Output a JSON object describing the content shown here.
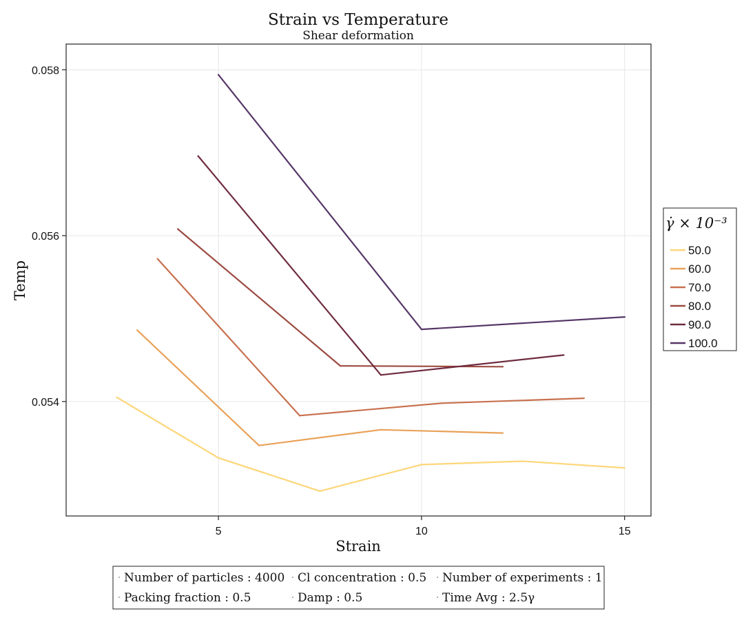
{
  "chart_data": {
    "type": "line",
    "title": "Strain vs Temperature",
    "subtitle": "Shear deformation",
    "xlabel": "Strain",
    "ylabel": "Temp",
    "xlim": [
      1.25,
      15.65
    ],
    "ylim": [
      0.05262,
      0.05831
    ],
    "xticks": [
      5,
      10,
      15
    ],
    "xtick_labels": [
      "5",
      "10",
      "15"
    ],
    "yticks": [
      0.054,
      0.056,
      0.058
    ],
    "ytick_labels": [
      "0.054",
      "0.056",
      "0.058"
    ],
    "grid": true,
    "legend": {
      "title": "γ̇ × 10⁻³",
      "placement": "right",
      "entries": [
        "50.0",
        "60.0",
        "70.0",
        "80.0",
        "90.0",
        "100.0"
      ]
    },
    "series": [
      {
        "name": "50.0",
        "color": "#fdd678",
        "x": [
          2.5,
          5.0,
          7.5,
          10.0,
          12.5,
          15.0
        ],
        "y": [
          0.05405,
          0.05332,
          0.05292,
          0.05324,
          0.05328,
          0.0532
        ]
      },
      {
        "name": "60.0",
        "color": "#e9a158",
        "x": [
          3.0,
          6.0,
          9.0,
          12.0
        ],
        "y": [
          0.05486,
          0.05347,
          0.05366,
          0.05362
        ]
      },
      {
        "name": "70.0",
        "color": "#c8704e",
        "x": [
          3.5,
          7.0,
          10.5,
          14.0
        ],
        "y": [
          0.05572,
          0.05383,
          0.05398,
          0.05404
        ]
      },
      {
        "name": "80.0",
        "color": "#9c4a40",
        "x": [
          4.0,
          8.0,
          12.0
        ],
        "y": [
          0.05608,
          0.05443,
          0.05442
        ]
      },
      {
        "name": "90.0",
        "color": "#6e2b3e",
        "x": [
          4.5,
          9.0,
          13.5
        ],
        "y": [
          0.05696,
          0.05432,
          0.05456
        ]
      },
      {
        "name": "100.0",
        "color": "#553566",
        "x": [
          5.0,
          10.0,
          15.0
        ],
        "y": [
          0.05794,
          0.05487,
          0.05502
        ]
      }
    ]
  },
  "info_box": {
    "items": [
      [
        "Number of particles : 4000",
        "Cl concentration : 0.5",
        "Number of experiments : 1"
      ],
      [
        "Packing fraction : 0.5",
        "Damp : 0.5",
        "Time Avg : 2.5γ"
      ]
    ]
  }
}
